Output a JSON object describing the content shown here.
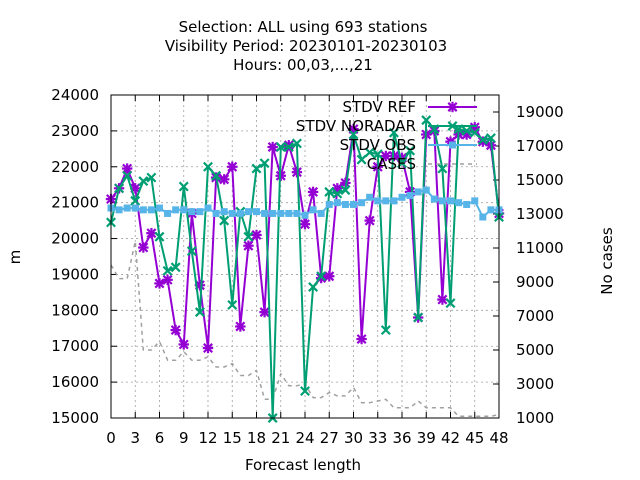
{
  "chart_data": {
    "type": "line",
    "title_lines": [
      "Selection: ALL using   693 stations",
      "Visibility   Period: 20230101-20230103",
      "Hours:  00,03,...,21"
    ],
    "xlabel": "Forecast length",
    "ylabel": "m",
    "y2label": "No cases",
    "xlim": [
      0,
      48
    ],
    "ylim": [
      15000,
      24000
    ],
    "y2lim": [
      1000,
      20000
    ],
    "grid": true,
    "legend_position": "top-right",
    "x_ticks": [
      0,
      3,
      6,
      9,
      12,
      15,
      18,
      21,
      24,
      27,
      30,
      33,
      36,
      39,
      42,
      45,
      48
    ],
    "y_ticks": [
      15000,
      16000,
      17000,
      18000,
      19000,
      20000,
      21000,
      22000,
      23000,
      24000
    ],
    "y2_ticks": [
      1000,
      3000,
      5000,
      7000,
      9000,
      11000,
      13000,
      15000,
      17000,
      19000
    ],
    "x": [
      0,
      1,
      2,
      3,
      4,
      5,
      6,
      7,
      8,
      9,
      10,
      11,
      12,
      13,
      14,
      15,
      16,
      17,
      18,
      19,
      20,
      21,
      22,
      23,
      24,
      25,
      26,
      27,
      28,
      29,
      30,
      31,
      32,
      33,
      34,
      35,
      36,
      37,
      38,
      39,
      40,
      41,
      42,
      43,
      44,
      45,
      46,
      47,
      48
    ],
    "series": [
      {
        "name": "STDV REF",
        "axis": "y1",
        "color": "#9400d3",
        "marker": "asterisk",
        "values": [
          21100,
          21400,
          21950,
          21400,
          19750,
          20150,
          18750,
          18850,
          17450,
          17050,
          20700,
          18700,
          16950,
          21700,
          21650,
          22000,
          17550,
          19800,
          20100,
          17950,
          22550,
          21750,
          22600,
          21850,
          20400,
          21300,
          18900,
          18950,
          21400,
          21550,
          23050,
          17200,
          20500,
          22000,
          22300,
          22300,
          22250,
          21300,
          17800,
          22900,
          23000,
          18300,
          22700,
          22900,
          22900,
          23100,
          22700,
          22600,
          20700
        ]
      },
      {
        "name": "STDV NORADAR",
        "axis": "y1",
        "color": "#009e73",
        "marker": "x",
        "values": [
          20450,
          21400,
          21750,
          21050,
          21600,
          21700,
          20050,
          19100,
          19200,
          21450,
          19650,
          17950,
          22000,
          21750,
          20500,
          18150,
          20750,
          20050,
          21950,
          22100,
          15000,
          22550,
          22550,
          22650,
          15750,
          18650,
          18950,
          21300,
          21250,
          21350,
          22900,
          22200,
          22400,
          22350,
          17450,
          22950,
          22100,
          22450,
          17800,
          23300,
          23050,
          21950,
          18200,
          23050,
          23000,
          22950,
          22750,
          22800,
          20600
        ]
      },
      {
        "name": "STDV OBS",
        "axis": "y1",
        "color": "#56b4e9",
        "marker": "square",
        "values": [
          20850,
          20800,
          20850,
          20850,
          20800,
          20800,
          20850,
          20700,
          20800,
          20800,
          20750,
          20750,
          20850,
          20700,
          20750,
          20700,
          20700,
          20750,
          20750,
          20700,
          20700,
          20700,
          20700,
          20700,
          20650,
          20800,
          20700,
          20950,
          21000,
          20950,
          20950,
          21000,
          21150,
          21050,
          21050,
          21050,
          21150,
          21200,
          21300,
          21350,
          21100,
          21050,
          21050,
          21000,
          20950,
          21050,
          20600,
          20800,
          20800
        ]
      },
      {
        "name": "CASES",
        "axis": "y2",
        "color": "#a0a0a0",
        "dashed": true,
        "values": [
          10000,
          9200,
          9200,
          11400,
          5000,
          5000,
          5500,
          4400,
          4400,
          4900,
          4400,
          4400,
          4600,
          4000,
          4000,
          4200,
          3500,
          3500,
          3800,
          2100,
          2100,
          3600,
          2900,
          2900,
          3000,
          2200,
          2200,
          2500,
          2300,
          2300,
          2800,
          1900,
          1900,
          2000,
          2100,
          1600,
          1600,
          1600,
          2000,
          1600,
          1600,
          1600,
          1600,
          1100,
          1100,
          1100,
          1100,
          1100,
          1200
        ]
      }
    ]
  }
}
